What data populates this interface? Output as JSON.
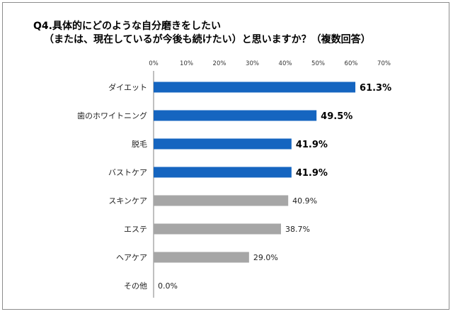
{
  "title_line1": "Q4.具体的にどのような自分磨きをしたい",
  "title_line2": "（または、現在しているが今後も続けたい）と思いますか？（複数回答）",
  "colors": {
    "highlight": "#1565c0",
    "normal": "#a6a6a6",
    "axis": "#808080"
  },
  "chart_data": {
    "type": "bar",
    "orientation": "horizontal",
    "title": "Q4.具体的にどのような自分磨きをしたい（または、現在しているが今後も続けたい）と思いますか？（複数回答）",
    "x_ticks": [
      "0%",
      "10%",
      "20%",
      "30%",
      "40%",
      "50%",
      "60%",
      "70%"
    ],
    "xlim": [
      0,
      70
    ],
    "grid": false,
    "categories": [
      "ダイエット",
      "歯のホワイトニング",
      "脱毛",
      "バストケア",
      "スキンケア",
      "エステ",
      "ヘアケア",
      "その他"
    ],
    "values": [
      61.3,
      49.5,
      41.9,
      41.9,
      40.9,
      38.7,
      29.0,
      0.0
    ],
    "labels": [
      "61.3%",
      "49.5%",
      "41.9%",
      "41.9%",
      "40.9%",
      "38.7%",
      "29.0%",
      "0.0%"
    ],
    "highlighted": [
      true,
      true,
      true,
      true,
      false,
      false,
      false,
      false
    ]
  }
}
